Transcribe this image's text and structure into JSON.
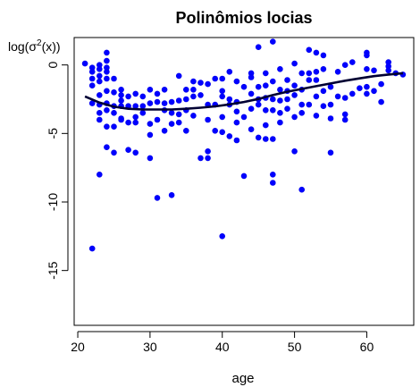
{
  "chart_data": {
    "type": "scatter",
    "title": "Polinômios locias",
    "xlabel": "age",
    "ylabel": "log(σ²(x))",
    "ylabel_parts": {
      "prefix": "log(σ",
      "sup": "2",
      "suffix": "(x))"
    },
    "xlim": [
      19.5,
      66.5
    ],
    "ylim": [
      -19,
      2
    ],
    "xticks": [
      20,
      30,
      40,
      50,
      60
    ],
    "yticks": [
      0,
      -5,
      -10,
      -15
    ],
    "xtick_labels": [
      "20",
      "30",
      "40",
      "50",
      "60"
    ],
    "ytick_labels": [
      "0",
      "-5",
      "-10",
      "-15"
    ],
    "grid": false,
    "point_color": "#0000ff",
    "line_color": "#000033",
    "points": [
      [
        21,
        0.1
      ],
      [
        22,
        -0.2
      ],
      [
        22,
        -0.5
      ],
      [
        22,
        -1.0
      ],
      [
        22,
        -1.5
      ],
      [
        22,
        -2.8
      ],
      [
        22,
        -13.4
      ],
      [
        23,
        0
      ],
      [
        23,
        -0.3
      ],
      [
        23,
        -0.8
      ],
      [
        23,
        -1.2
      ],
      [
        23,
        -2.2
      ],
      [
        23,
        -2.9
      ],
      [
        23,
        -3.5
      ],
      [
        23,
        -4.0
      ],
      [
        23,
        -8.0
      ],
      [
        24,
        0.9
      ],
      [
        24,
        0.3
      ],
      [
        24,
        -0.2
      ],
      [
        24,
        -0.5
      ],
      [
        24,
        -1.0
      ],
      [
        24,
        -1.9
      ],
      [
        24,
        -2.8
      ],
      [
        24,
        -3.3
      ],
      [
        24,
        -4.5
      ],
      [
        24,
        -6.0
      ],
      [
        25,
        -1.0
      ],
      [
        25,
        -2.0
      ],
      [
        25,
        -3.0
      ],
      [
        25,
        -3.5
      ],
      [
        25,
        -4.5
      ],
      [
        25,
        -6.4
      ],
      [
        26,
        -1.8
      ],
      [
        26,
        -2.2
      ],
      [
        26,
        -2.6
      ],
      [
        26,
        -3.0
      ],
      [
        26,
        -3.9
      ],
      [
        26,
        -4.0
      ],
      [
        27,
        -2.3
      ],
      [
        27,
        -3.0
      ],
      [
        27,
        -4.2
      ],
      [
        27,
        -6.2
      ],
      [
        28,
        -2.1
      ],
      [
        28,
        -3.0
      ],
      [
        28,
        -3.8
      ],
      [
        28,
        -4.2
      ],
      [
        28,
        -6.4
      ],
      [
        29,
        -2.3
      ],
      [
        29,
        -3.0
      ],
      [
        29,
        -3.5
      ],
      [
        30,
        -1.8
      ],
      [
        30,
        -2.8
      ],
      [
        30,
        -4.3
      ],
      [
        30,
        -5.1
      ],
      [
        30,
        -6.8
      ],
      [
        31,
        -2.1
      ],
      [
        31,
        -2.7
      ],
      [
        31,
        -4.0
      ],
      [
        31,
        -9.7
      ],
      [
        32,
        -1.8
      ],
      [
        32,
        -2.8
      ],
      [
        32,
        -3.3
      ],
      [
        32,
        -4.8
      ],
      [
        33,
        -2.7
      ],
      [
        33,
        -3.5
      ],
      [
        33,
        -4.3
      ],
      [
        33,
        -9.5
      ],
      [
        34,
        -0.8
      ],
      [
        34,
        -2.6
      ],
      [
        34,
        -3.6
      ],
      [
        34,
        -4.2
      ],
      [
        35,
        -1.8
      ],
      [
        35,
        -2.5
      ],
      [
        35,
        -3.3
      ],
      [
        35,
        -4.8
      ],
      [
        36,
        -1.2
      ],
      [
        36,
        -1.8
      ],
      [
        36,
        -2.3
      ],
      [
        36,
        -3.7
      ],
      [
        37,
        -1.3
      ],
      [
        37,
        -2.2
      ],
      [
        37,
        -6.8
      ],
      [
        38,
        -1.4
      ],
      [
        38,
        -2.9
      ],
      [
        38,
        -4.0
      ],
      [
        38,
        -6.3
      ],
      [
        38,
        -6.8
      ],
      [
        39,
        -1.0
      ],
      [
        39,
        -2.9
      ],
      [
        39,
        -4.8
      ],
      [
        40,
        -1.0
      ],
      [
        40,
        -1.9
      ],
      [
        40,
        -2.3
      ],
      [
        40,
        -3.8
      ],
      [
        40,
        -4.9
      ],
      [
        40,
        -12.5
      ],
      [
        41,
        -0.5
      ],
      [
        41,
        -2.5
      ],
      [
        41,
        -2.9
      ],
      [
        41,
        -5.2
      ],
      [
        42,
        -1.2
      ],
      [
        42,
        -2.7
      ],
      [
        42,
        -3.4
      ],
      [
        42,
        -4.2
      ],
      [
        42,
        -5.5
      ],
      [
        43,
        -1.6
      ],
      [
        43,
        -3.8
      ],
      [
        43,
        -8.1
      ],
      [
        44,
        -0.6
      ],
      [
        44,
        -0.9
      ],
      [
        44,
        -2.1
      ],
      [
        44,
        -3.2
      ],
      [
        44,
        -4.7
      ],
      [
        45,
        1.3
      ],
      [
        45,
        -1.6
      ],
      [
        45,
        -2.5
      ],
      [
        45,
        -2.9
      ],
      [
        45,
        -5.3
      ],
      [
        46,
        -0.6
      ],
      [
        46,
        -1.5
      ],
      [
        46,
        -2.4
      ],
      [
        46,
        -3.3
      ],
      [
        46,
        -4.4
      ],
      [
        46,
        -5.4
      ],
      [
        47,
        1.7
      ],
      [
        47,
        -1.2
      ],
      [
        47,
        -2.5
      ],
      [
        47,
        -3.3
      ],
      [
        47,
        -5.4
      ],
      [
        47,
        -8.0
      ],
      [
        47,
        -8.6
      ],
      [
        48,
        -0.3
      ],
      [
        48,
        -1.8
      ],
      [
        48,
        -2.6
      ],
      [
        48,
        -3.5
      ],
      [
        48,
        -4.2
      ],
      [
        49,
        -1.1
      ],
      [
        49,
        -1.9
      ],
      [
        49,
        -2.5
      ],
      [
        49,
        -3.2
      ],
      [
        50,
        0.1
      ],
      [
        50,
        -1.5
      ],
      [
        50,
        -2.2
      ],
      [
        50,
        -3.8
      ],
      [
        50,
        -6.3
      ],
      [
        51,
        -0.6
      ],
      [
        51,
        -1.8
      ],
      [
        51,
        -2.9
      ],
      [
        51,
        -3.5
      ],
      [
        51,
        -9.1
      ],
      [
        52,
        1.1
      ],
      [
        52,
        -0.6
      ],
      [
        52,
        -1.1
      ],
      [
        52,
        -2.9
      ],
      [
        53,
        0.9
      ],
      [
        53,
        -0.5
      ],
      [
        53,
        -1.1
      ],
      [
        53,
        -2.3
      ],
      [
        53,
        -3.7
      ],
      [
        54,
        0.7
      ],
      [
        54,
        -0.3
      ],
      [
        54,
        -1.9
      ],
      [
        54,
        -3.0
      ],
      [
        55,
        -1.6
      ],
      [
        55,
        -2.9
      ],
      [
        55,
        -3.9
      ],
      [
        55,
        -6.4
      ],
      [
        56,
        -0.5
      ],
      [
        56,
        -2.3
      ],
      [
        57,
        0
      ],
      [
        57,
        -2.4
      ],
      [
        57,
        -3.6
      ],
      [
        57,
        -4.0
      ],
      [
        58,
        0.2
      ],
      [
        58,
        -2.1
      ],
      [
        59,
        -1.7
      ],
      [
        60,
        0.9
      ],
      [
        60,
        0.7
      ],
      [
        60,
        -0.3
      ],
      [
        60,
        -1.6
      ],
      [
        60,
        -2.1
      ],
      [
        61,
        -0.4
      ],
      [
        61,
        -1.9
      ],
      [
        62,
        -1.4
      ],
      [
        62,
        -2.7
      ],
      [
        63,
        0.2
      ],
      [
        63,
        -0.1
      ],
      [
        63,
        -0.4
      ],
      [
        64,
        -0.6
      ],
      [
        65,
        -0.7
      ]
    ],
    "smooth_line": {
      "x": [
        21,
        23,
        25,
        27,
        29,
        31,
        33,
        35,
        37,
        39,
        41,
        43,
        45,
        47,
        49,
        51,
        53,
        55,
        57,
        59,
        61,
        63,
        65
      ],
      "y": [
        -2.3,
        -2.75,
        -3.05,
        -3.2,
        -3.25,
        -3.25,
        -3.25,
        -3.2,
        -3.12,
        -3.02,
        -2.88,
        -2.7,
        -2.48,
        -2.2,
        -1.95,
        -1.75,
        -1.55,
        -1.35,
        -1.15,
        -0.98,
        -0.82,
        -0.7,
        -0.6
      ]
    }
  }
}
